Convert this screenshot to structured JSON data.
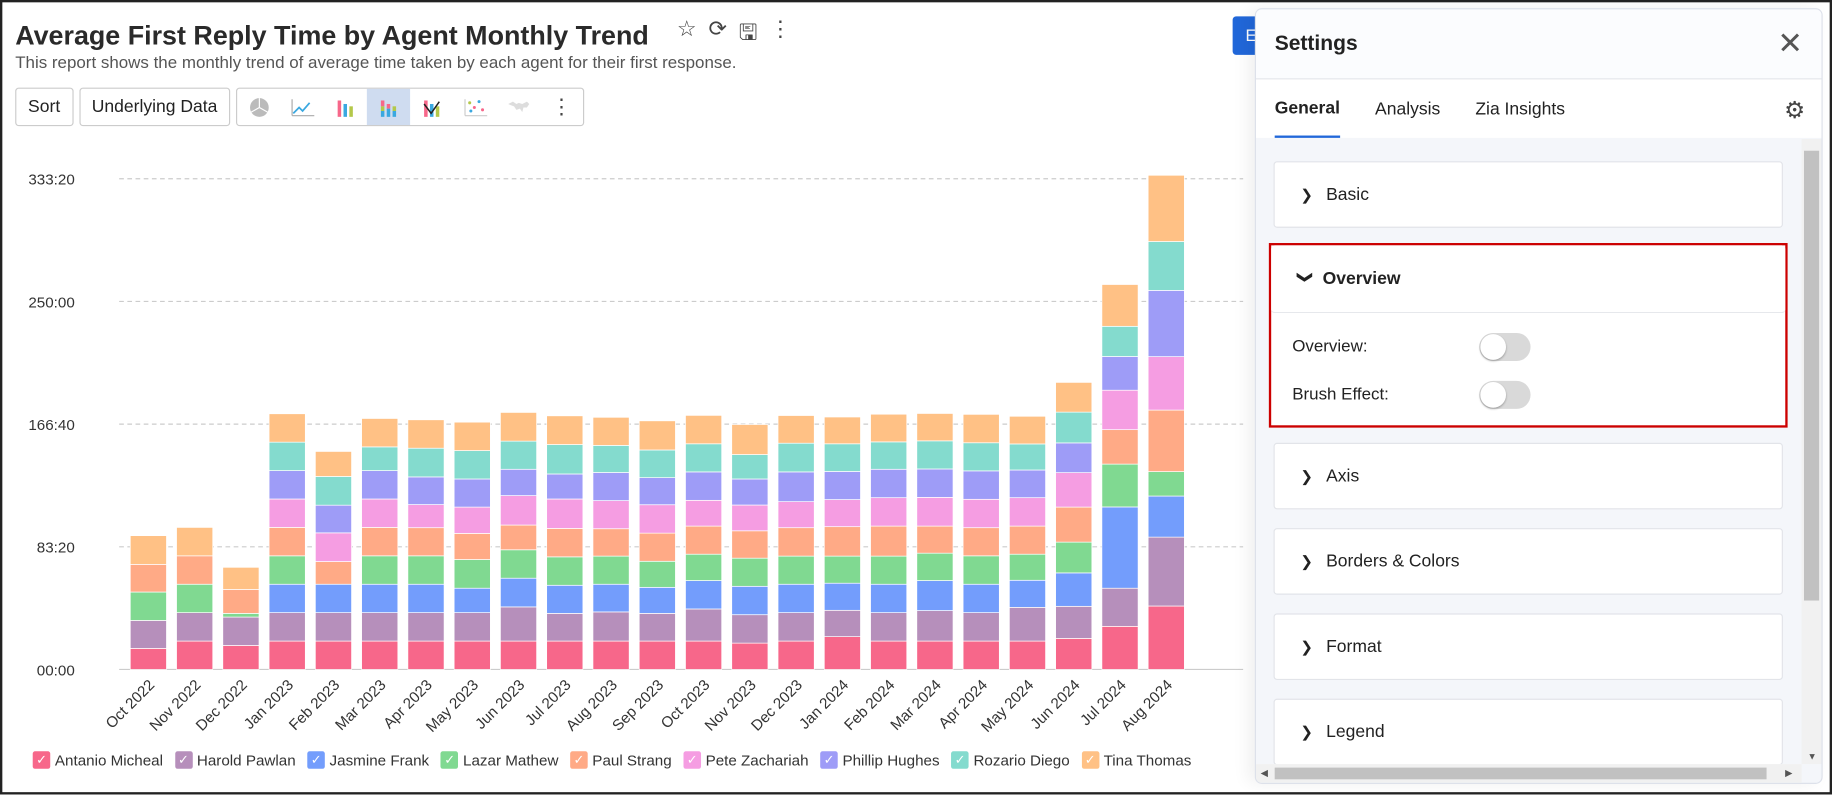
{
  "report": {
    "title": "Average First Reply Time by Agent Monthly Trend",
    "subtitle": "This report shows the monthly trend of average time taken by each agent for their first response.",
    "icons": [
      "star-icon",
      "refresh-icon",
      "save-icon",
      "more-vertical-icon"
    ]
  },
  "toolbar": {
    "sort": "Sort",
    "underlying": "Underlying Data",
    "chart_types": [
      "pie",
      "line",
      "bar",
      "stacked-bar",
      "combo",
      "scatter",
      "map"
    ],
    "active_type": "stacked-bar"
  },
  "header_button": "E",
  "chart_data": {
    "type": "bar",
    "stacked": true,
    "ylabel": "",
    "xlabel": "",
    "yticks": [
      "00:00",
      "83:20",
      "166:40",
      "250:00",
      "333:20"
    ],
    "ylim_hours": [
      0,
      333.33
    ],
    "grid": true,
    "legend": "bottom",
    "categories": [
      "Oct 2022",
      "Nov 2022",
      "Dec 2022",
      "Jan 2023",
      "Feb 2023",
      "Mar 2023",
      "Apr 2023",
      "May 2023",
      "Jun 2023",
      "Jul 2023",
      "Aug 2023",
      "Sep 2023",
      "Oct 2023",
      "Nov 2023",
      "Dec 2023",
      "Jan 2024",
      "Feb 2024",
      "Mar 2024",
      "Apr 2024",
      "May 2024",
      "Jun 2024",
      "Jul 2024",
      "Aug 2024"
    ],
    "series": [
      {
        "name": "Antanio Micheal",
        "color": "#f7678a",
        "values": [
          14.3,
          19.3,
          16.3,
          19.3,
          19.3,
          19.3,
          19.3,
          19.3,
          19.3,
          19.3,
          19.3,
          19.3,
          19.3,
          17.9,
          19.3,
          22.3,
          19.3,
          19.3,
          19.3,
          19.3,
          21.1,
          29.3,
          43.1
        ]
      },
      {
        "name": "Harold Pawlan",
        "color": "#b68fbb",
        "values": [
          19.0,
          19.3,
          19.3,
          19.3,
          19.3,
          19.3,
          19.3,
          19.3,
          23.2,
          18.8,
          19.8,
          18.8,
          21.8,
          19.3,
          19.3,
          17.9,
          19.3,
          20.7,
          19.3,
          22.9,
          21.8,
          25.9,
          46.8
        ]
      },
      {
        "name": "Jasmine Frank",
        "color": "#739dfc",
        "values": [
          0,
          0,
          0,
          19.3,
          19.3,
          19.3,
          19.3,
          16.6,
          19.5,
          19.1,
          18.8,
          17.7,
          19.3,
          19.3,
          19.3,
          18.4,
          19.3,
          20.4,
          19.3,
          18.4,
          22.7,
          55.2,
          27.9
        ]
      },
      {
        "name": "Lazar Mathew",
        "color": "#80d991",
        "values": [
          19.3,
          19.3,
          2.5,
          19.3,
          0,
          19.3,
          19.3,
          19.5,
          19.3,
          19.3,
          19.1,
          17.7,
          17.9,
          19.1,
          19.1,
          18.4,
          19.1,
          18.6,
          19.3,
          17.7,
          20.9,
          29.1,
          16.6
        ]
      },
      {
        "name": "Paul Strang",
        "color": "#ffaa86",
        "values": [
          18.8,
          19.3,
          16.3,
          19.3,
          15.4,
          19.3,
          19.1,
          17.7,
          16.8,
          19.3,
          18.6,
          19.1,
          19.1,
          18.6,
          19.3,
          20.0,
          20.4,
          18.4,
          19.1,
          19.1,
          23.8,
          23.4,
          41.8
        ]
      },
      {
        "name": "Pete Zachariah",
        "color": "#f59de2",
        "values": [
          0,
          0,
          0,
          19.3,
          19.5,
          19.3,
          15.7,
          17.9,
          20.0,
          20.0,
          19.1,
          19.3,
          17.5,
          17.5,
          17.7,
          18.4,
          19.3,
          19.5,
          19.3,
          19.3,
          23.4,
          26.8,
          36.3
        ]
      },
      {
        "name": "Phillip Hughes",
        "color": "#9e9cf7",
        "values": [
          0,
          0,
          0,
          19.3,
          18.8,
          19.3,
          18.8,
          19.1,
          17.9,
          17.0,
          19.1,
          18.4,
          19.3,
          17.7,
          20.2,
          19.1,
          19.3,
          19.3,
          19.3,
          18.8,
          20.2,
          22.9,
          45.0
        ]
      },
      {
        "name": "Rozario Diego",
        "color": "#84dbce",
        "values": [
          0,
          0,
          0,
          19.3,
          19.5,
          16.1,
          19.5,
          19.3,
          19.1,
          20.0,
          18.4,
          18.8,
          19.1,
          16.6,
          19.5,
          18.8,
          18.6,
          19.1,
          19.1,
          17.7,
          20.9,
          20.5,
          33.2
        ]
      },
      {
        "name": "Tina Thomas",
        "color": "#ffc185",
        "values": [
          19.5,
          19.3,
          15.0,
          19.3,
          17.0,
          19.3,
          19.3,
          19.3,
          19.5,
          19.5,
          19.1,
          19.8,
          19.3,
          20.4,
          18.8,
          18.2,
          18.8,
          18.6,
          19.3,
          18.8,
          20.2,
          28.4,
          45.0
        ]
      }
    ]
  },
  "settings": {
    "title": "Settings",
    "tabs": [
      "General",
      "Analysis",
      "Zia Insights"
    ],
    "active_tab": "General",
    "sections": [
      "Basic",
      "Overview",
      "Axis",
      "Borders & Colors",
      "Format",
      "Legend"
    ],
    "overview": {
      "overview_label": "Overview:",
      "overview_on": false,
      "brush_label": "Brush Effect:",
      "brush_on": false
    }
  }
}
